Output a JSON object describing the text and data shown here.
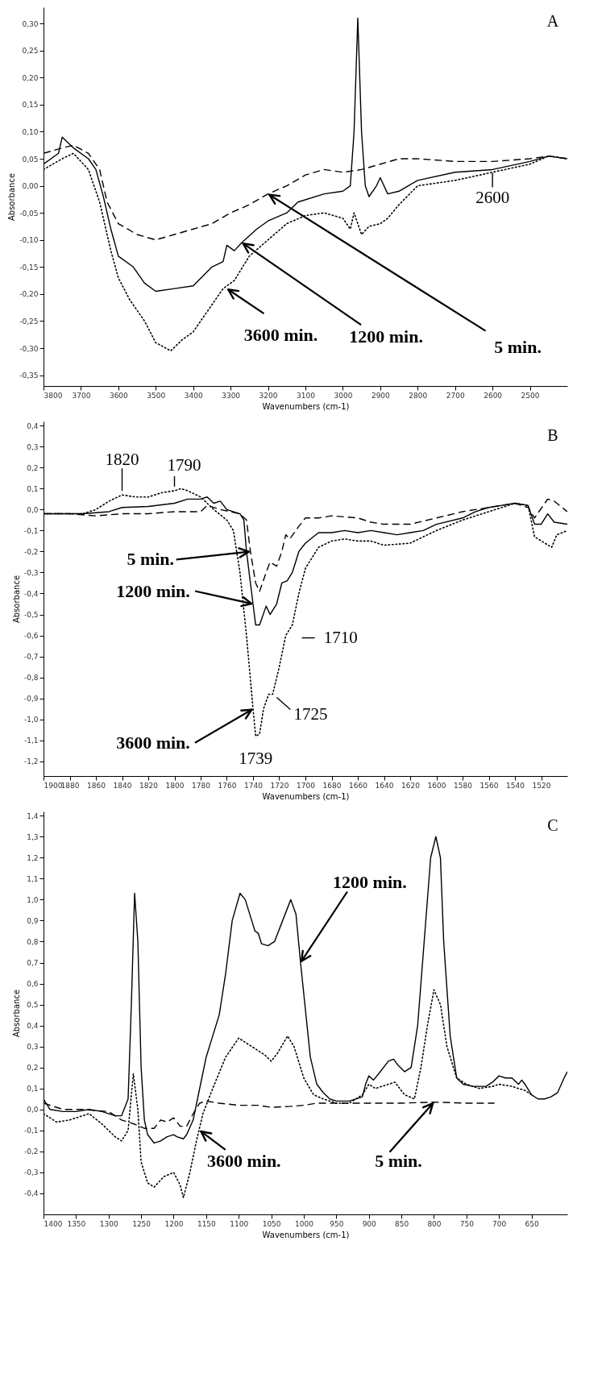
{
  "chart_data": [
    {
      "type": "line",
      "xlabel": "Wavenumbers (cm-1)",
      "ylabel": "Absorbance",
      "xlim": [
        3800,
        2400
      ],
      "ylim": [
        -0.37,
        0.33
      ],
      "xticks": [
        3800,
        3700,
        3600,
        3500,
        3400,
        3300,
        3200,
        3100,
        3000,
        2900,
        2800,
        2700,
        2600,
        2500
      ],
      "yticks": [
        {
          "value": -0.35,
          "label": "-0,35"
        },
        {
          "value": -0.3,
          "label": "-0,30"
        },
        {
          "value": -0.25,
          "label": "-0,25"
        },
        {
          "value": -0.2,
          "label": "-0,20"
        },
        {
          "value": -0.15,
          "label": "-0,15"
        },
        {
          "value": -0.1,
          "label": "-0,10"
        },
        {
          "value": -0.05,
          "label": "-0,05"
        },
        {
          "value": 0,
          "label": "0,00"
        },
        {
          "value": 0.05,
          "label": "0,05"
        },
        {
          "value": 0.1,
          "label": "0,10"
        },
        {
          "value": 0.15,
          "label": "0,15"
        },
        {
          "value": 0.2,
          "label": "0,20"
        },
        {
          "value": 0.25,
          "label": "0,25"
        },
        {
          "value": 0.3,
          "label": "0,30"
        }
      ],
      "series": [
        {
          "color": "#000000",
          "line_style": "dashed",
          "x": [
            3800,
            3750,
            3720,
            3680,
            3650,
            3630,
            3600,
            3550,
            3500,
            3450,
            3400,
            3350,
            3300,
            3250,
            3200,
            3150,
            3100,
            3050,
            3000,
            2950,
            2900,
            2850,
            2800,
            2700,
            2600,
            2500,
            2450,
            2400
          ],
          "values": [
            0.06,
            0.07,
            0.075,
            0.06,
            0.03,
            -0.03,
            -0.07,
            -0.09,
            -0.1,
            -0.09,
            -0.08,
            -0.07,
            -0.05,
            -0.035,
            -0.015,
            0.0,
            0.02,
            0.03,
            0.025,
            0.03,
            0.04,
            0.05,
            0.05,
            0.045,
            0.045,
            0.05,
            0.055,
            0.05
          ]
        },
        {
          "color": "#000000",
          "line_style": "solid",
          "x": [
            3800,
            3760,
            3750,
            3720,
            3680,
            3660,
            3640,
            3620,
            3600,
            3560,
            3530,
            3500,
            3450,
            3400,
            3350,
            3320,
            3310,
            3290,
            3270,
            3230,
            3200,
            3150,
            3120,
            3050,
            3000,
            2980,
            2970,
            2960,
            2950,
            2940,
            2930,
            2910,
            2900,
            2880,
            2850,
            2800,
            2700,
            2600,
            2500,
            2450,
            2400
          ],
          "values": [
            0.04,
            0.06,
            0.09,
            0.07,
            0.05,
            0.03,
            -0.02,
            -0.08,
            -0.13,
            -0.15,
            -0.18,
            -0.195,
            -0.19,
            -0.185,
            -0.15,
            -0.14,
            -0.11,
            -0.12,
            -0.105,
            -0.08,
            -0.065,
            -0.05,
            -0.03,
            -0.015,
            -0.01,
            0.0,
            0.1,
            0.31,
            0.1,
            0.0,
            -0.02,
            0.0,
            0.015,
            -0.015,
            -0.01,
            0.01,
            0.025,
            0.03,
            0.045,
            0.055,
            0.05
          ]
        },
        {
          "color": "#000000",
          "line_style": "dotted",
          "x": [
            3800,
            3750,
            3720,
            3680,
            3650,
            3620,
            3600,
            3570,
            3530,
            3500,
            3460,
            3430,
            3400,
            3350,
            3320,
            3290,
            3250,
            3200,
            3150,
            3100,
            3050,
            3000,
            2980,
            2970,
            2960,
            2950,
            2930,
            2900,
            2880,
            2850,
            2800,
            2700,
            2600,
            2500,
            2450,
            2400
          ],
          "values": [
            0.03,
            0.05,
            0.06,
            0.03,
            -0.03,
            -0.12,
            -0.17,
            -0.21,
            -0.25,
            -0.29,
            -0.305,
            -0.285,
            -0.27,
            -0.22,
            -0.19,
            -0.175,
            -0.13,
            -0.1,
            -0.07,
            -0.055,
            -0.05,
            -0.06,
            -0.08,
            -0.05,
            -0.07,
            -0.09,
            -0.075,
            -0.07,
            -0.06,
            -0.035,
            0.0,
            0.01,
            0.025,
            0.04,
            0.055,
            0.05
          ]
        }
      ],
      "annotations": [
        "A",
        {
          "text": "3600 min.",
          "x": 3310,
          "y": -0.19
        },
        {
          "text": "1200 min.",
          "x": 3270,
          "y": -0.105
        },
        {
          "text": "5 min.",
          "x": 3200,
          "y": -0.015
        },
        {
          "text": "2600",
          "x": 2600,
          "y": 0.03
        }
      ]
    },
    {
      "type": "line",
      "xlabel": "Wavenumbers (cm-1)",
      "ylabel": "Absorbance",
      "xlim": [
        1900,
        1500
      ],
      "ylim": [
        -1.27,
        0.42
      ],
      "xticks": [
        1900,
        1880,
        1860,
        1840,
        1820,
        1800,
        1780,
        1760,
        1740,
        1720,
        1700,
        1680,
        1660,
        1640,
        1620,
        1600,
        1580,
        1560,
        1540,
        1520
      ],
      "yticks": [
        {
          "value": -1.2,
          "label": "-1,2"
        },
        {
          "value": -1.1,
          "label": "-1,1"
        },
        {
          "value": -1.0,
          "label": "-1,0"
        },
        {
          "value": -0.9,
          "label": "-0,9"
        },
        {
          "value": -0.8,
          "label": "-0,8"
        },
        {
          "value": -0.7,
          "label": "-0,7"
        },
        {
          "value": -0.6,
          "label": "-0,6"
        },
        {
          "value": -0.5,
          "label": "-0,5"
        },
        {
          "value": -0.4,
          "label": "-0,4"
        },
        {
          "value": -0.3,
          "label": "-0,3"
        },
        {
          "value": -0.2,
          "label": "-0,2"
        },
        {
          "value": -0.1,
          "label": "-0,1"
        },
        {
          "value": 0,
          "label": "0,0"
        },
        {
          "value": 0.1,
          "label": "0,1"
        },
        {
          "value": 0.2,
          "label": "0,2"
        },
        {
          "value": 0.3,
          "label": "0,3"
        },
        {
          "value": 0.4,
          "label": "0,4"
        }
      ],
      "series": [
        {
          "color": "#000000",
          "line_style": "dashed",
          "x": [
            1900,
            1880,
            1860,
            1840,
            1820,
            1800,
            1780,
            1775,
            1765,
            1750,
            1745,
            1742,
            1738,
            1735,
            1730,
            1727,
            1722,
            1718,
            1715,
            1712,
            1705,
            1700,
            1690,
            1680,
            1660,
            1650,
            1640,
            1620,
            1600,
            1580,
            1560,
            1540,
            1530,
            1525,
            1515,
            1510,
            1500
          ],
          "values": [
            -0.02,
            -0.02,
            -0.03,
            -0.02,
            -0.02,
            -0.01,
            -0.01,
            0.02,
            0.0,
            -0.02,
            -0.05,
            -0.2,
            -0.35,
            -0.39,
            -0.3,
            -0.25,
            -0.27,
            -0.2,
            -0.12,
            -0.14,
            -0.08,
            -0.04,
            -0.04,
            -0.03,
            -0.04,
            -0.06,
            -0.07,
            -0.07,
            -0.04,
            -0.01,
            0.01,
            0.03,
            0.01,
            -0.04,
            0.05,
            0.04,
            -0.01
          ]
        },
        {
          "color": "#000000",
          "line_style": "solid",
          "x": [
            1900,
            1870,
            1850,
            1840,
            1820,
            1800,
            1790,
            1780,
            1775,
            1770,
            1765,
            1760,
            1750,
            1747,
            1745,
            1740,
            1738,
            1735,
            1730,
            1727,
            1722,
            1718,
            1714,
            1710,
            1705,
            1700,
            1690,
            1680,
            1670,
            1660,
            1650,
            1640,
            1630,
            1620,
            1610,
            1600,
            1580,
            1570,
            1560,
            1550,
            1540,
            1530,
            1525,
            1520,
            1515,
            1510,
            1500
          ],
          "values": [
            -0.02,
            -0.02,
            -0.01,
            0.01,
            0.015,
            0.03,
            0.05,
            0.05,
            0.06,
            0.03,
            0.04,
            0.0,
            -0.02,
            -0.05,
            -0.2,
            -0.45,
            -0.55,
            -0.55,
            -0.46,
            -0.5,
            -0.45,
            -0.35,
            -0.34,
            -0.3,
            -0.2,
            -0.16,
            -0.11,
            -0.11,
            -0.1,
            -0.11,
            -0.1,
            -0.11,
            -0.12,
            -0.11,
            -0.1,
            -0.07,
            -0.04,
            -0.01,
            0.01,
            0.02,
            0.03,
            0.02,
            -0.07,
            -0.07,
            -0.02,
            -0.06,
            -0.07
          ]
        },
        {
          "color": "#000000",
          "line_style": "dotted",
          "x": [
            1900,
            1870,
            1860,
            1850,
            1840,
            1830,
            1820,
            1810,
            1800,
            1795,
            1790,
            1780,
            1770,
            1760,
            1755,
            1750,
            1745,
            1740,
            1738,
            1735,
            1732,
            1728,
            1725,
            1720,
            1715,
            1710,
            1705,
            1700,
            1690,
            1680,
            1670,
            1660,
            1650,
            1640,
            1620,
            1600,
            1580,
            1560,
            1540,
            1530,
            1525,
            1512,
            1508,
            1500
          ],
          "values": [
            -0.02,
            -0.02,
            0.0,
            0.04,
            0.07,
            0.06,
            0.06,
            0.08,
            0.09,
            0.1,
            0.09,
            0.06,
            0.0,
            -0.05,
            -0.1,
            -0.3,
            -0.6,
            -0.95,
            -1.08,
            -1.07,
            -0.95,
            -0.88,
            -0.88,
            -0.75,
            -0.6,
            -0.55,
            -0.4,
            -0.28,
            -0.18,
            -0.15,
            -0.14,
            -0.15,
            -0.15,
            -0.17,
            -0.16,
            -0.1,
            -0.05,
            -0.01,
            0.03,
            0.02,
            -0.13,
            -0.18,
            -0.12,
            -0.1
          ]
        }
      ],
      "annotations": [
        "B",
        {
          "text": "1820",
          "x": 1840,
          "y": 0.07
        },
        {
          "text": "1790",
          "x": 1800,
          "y": 0.09
        },
        {
          "text": "5 min.",
          "x": 1742,
          "y": -0.2
        },
        {
          "text": "1200 min.",
          "x": 1740,
          "y": -0.45
        },
        {
          "text": "1710",
          "x": 1715,
          "y": -0.6
        },
        {
          "text": "3600 min.",
          "x": 1740,
          "y": -0.95
        },
        {
          "text": "1725",
          "x": 1725,
          "y": -0.88
        },
        {
          "text": "1739",
          "x": 1738,
          "y": -1.08
        }
      ]
    },
    {
      "type": "line",
      "xlabel": "Wavenumbers (cm-1)",
      "ylabel": "Absorbance",
      "xlim": [
        1400,
        595
      ],
      "ylim": [
        -0.5,
        1.42
      ],
      "xticks": [
        1400,
        1350,
        1300,
        1250,
        1200,
        1150,
        1100,
        1050,
        1000,
        950,
        900,
        850,
        800,
        750,
        700,
        650
      ],
      "yticks": [
        {
          "value": -0.4,
          "label": "-0,4"
        },
        {
          "value": -0.3,
          "label": "-0,3"
        },
        {
          "value": -0.2,
          "label": "-0,2"
        },
        {
          "value": -0.1,
          "label": "-0,1"
        },
        {
          "value": 0,
          "label": "0,0"
        },
        {
          "value": 0.1,
          "label": "0,1"
        },
        {
          "value": 0.2,
          "label": "0,2"
        },
        {
          "value": 0.3,
          "label": "0,3"
        },
        {
          "value": 0.4,
          "label": "0,4"
        },
        {
          "value": 0.5,
          "label": "0,5"
        },
        {
          "value": 0.6,
          "label": "0,6"
        },
        {
          "value": 0.7,
          "label": "0,7"
        },
        {
          "value": 0.8,
          "label": "0,8"
        },
        {
          "value": 0.9,
          "label": "0,9"
        },
        {
          "value": 1.0,
          "label": "1,0"
        },
        {
          "value": 1.1,
          "label": "1,1"
        },
        {
          "value": 1.2,
          "label": "1,2"
        },
        {
          "value": 1.3,
          "label": "1,3"
        },
        {
          "value": 1.4,
          "label": "1,4"
        }
      ],
      "series": [
        {
          "color": "#000000",
          "line_style": "dashed",
          "x": [
            1400,
            1370,
            1340,
            1300,
            1280,
            1260,
            1245,
            1230,
            1220,
            1210,
            1200,
            1190,
            1180,
            1170,
            1160,
            1150,
            1130,
            1100,
            1070,
            1050,
            1020,
            1000,
            980,
            950,
            900,
            850,
            800,
            750,
            707
          ],
          "values": [
            0.03,
            0.0,
            0.0,
            -0.01,
            -0.05,
            -0.07,
            -0.09,
            -0.09,
            -0.05,
            -0.06,
            -0.04,
            -0.08,
            -0.08,
            -0.02,
            0.03,
            0.04,
            0.03,
            0.02,
            0.02,
            0.01,
            0.015,
            0.02,
            0.03,
            0.03,
            0.03,
            0.03,
            0.035,
            0.03,
            0.03
          ]
        },
        {
          "color": "#000000",
          "line_style": "solid",
          "x": [
            1400,
            1390,
            1370,
            1350,
            1330,
            1310,
            1290,
            1280,
            1270,
            1265,
            1260,
            1255,
            1250,
            1245,
            1240,
            1230,
            1220,
            1210,
            1200,
            1195,
            1185,
            1180,
            1170,
            1160,
            1150,
            1140,
            1130,
            1120,
            1110,
            1098,
            1090,
            1080,
            1075,
            1070,
            1065,
            1055,
            1045,
            1035,
            1020,
            1012,
            1005,
            995,
            990,
            980,
            970,
            960,
            950,
            930,
            910,
            905,
            900,
            893,
            885,
            870,
            862,
            855,
            845,
            835,
            825,
            815,
            805,
            797,
            790,
            785,
            775,
            765,
            755,
            740,
            720,
            710,
            700,
            690,
            680,
            670,
            665,
            660,
            650,
            640,
            630,
            620,
            610,
            600,
            595
          ],
          "values": [
            0.05,
            0.0,
            -0.01,
            -0.01,
            0.0,
            -0.01,
            -0.03,
            -0.03,
            0.05,
            0.5,
            1.03,
            0.8,
            0.2,
            -0.05,
            -0.12,
            -0.16,
            -0.15,
            -0.13,
            -0.12,
            -0.13,
            -0.14,
            -0.12,
            -0.05,
            0.1,
            0.25,
            0.35,
            0.45,
            0.65,
            0.9,
            1.03,
            1.0,
            0.9,
            0.85,
            0.84,
            0.79,
            0.78,
            0.8,
            0.88,
            1.0,
            0.93,
            0.7,
            0.4,
            0.25,
            0.12,
            0.08,
            0.05,
            0.04,
            0.04,
            0.06,
            0.12,
            0.16,
            0.14,
            0.17,
            0.23,
            0.24,
            0.21,
            0.18,
            0.2,
            0.4,
            0.8,
            1.2,
            1.3,
            1.2,
            0.8,
            0.35,
            0.15,
            0.12,
            0.11,
            0.11,
            0.13,
            0.16,
            0.15,
            0.15,
            0.12,
            0.14,
            0.12,
            0.07,
            0.05,
            0.05,
            0.06,
            0.08,
            0.15,
            0.18
          ]
        },
        {
          "color": "#000000",
          "line_style": "dotted",
          "x": [
            1400,
            1380,
            1360,
            1330,
            1310,
            1290,
            1280,
            1270,
            1262,
            1255,
            1250,
            1240,
            1230,
            1215,
            1200,
            1190,
            1185,
            1175,
            1165,
            1155,
            1140,
            1120,
            1100,
            1080,
            1060,
            1050,
            1040,
            1025,
            1015,
            1000,
            985,
            970,
            950,
            930,
            910,
            900,
            890,
            870,
            860,
            845,
            830,
            820,
            810,
            800,
            790,
            780,
            765,
            750,
            730,
            710,
            700,
            680,
            660,
            650
          ],
          "values": [
            -0.02,
            -0.06,
            -0.05,
            -0.02,
            -0.07,
            -0.13,
            -0.15,
            -0.1,
            0.17,
            0.0,
            -0.25,
            -0.35,
            -0.37,
            -0.32,
            -0.3,
            -0.36,
            -0.42,
            -0.3,
            -0.15,
            -0.02,
            0.1,
            0.25,
            0.34,
            0.3,
            0.26,
            0.23,
            0.27,
            0.35,
            0.3,
            0.15,
            0.07,
            0.05,
            0.03,
            0.03,
            0.07,
            0.12,
            0.1,
            0.12,
            0.13,
            0.07,
            0.05,
            0.2,
            0.4,
            0.57,
            0.5,
            0.3,
            0.15,
            0.12,
            0.1,
            0.11,
            0.12,
            0.11,
            0.09,
            0.07
          ]
        }
      ],
      "annotations": [
        "C",
        {
          "text": "1200 min.",
          "x": 1005,
          "y": 0.7
        },
        {
          "text": "3600 min.",
          "x": 1160,
          "y": -0.1
        },
        {
          "text": "5 min.",
          "x": 800,
          "y": 0.035
        }
      ]
    }
  ]
}
